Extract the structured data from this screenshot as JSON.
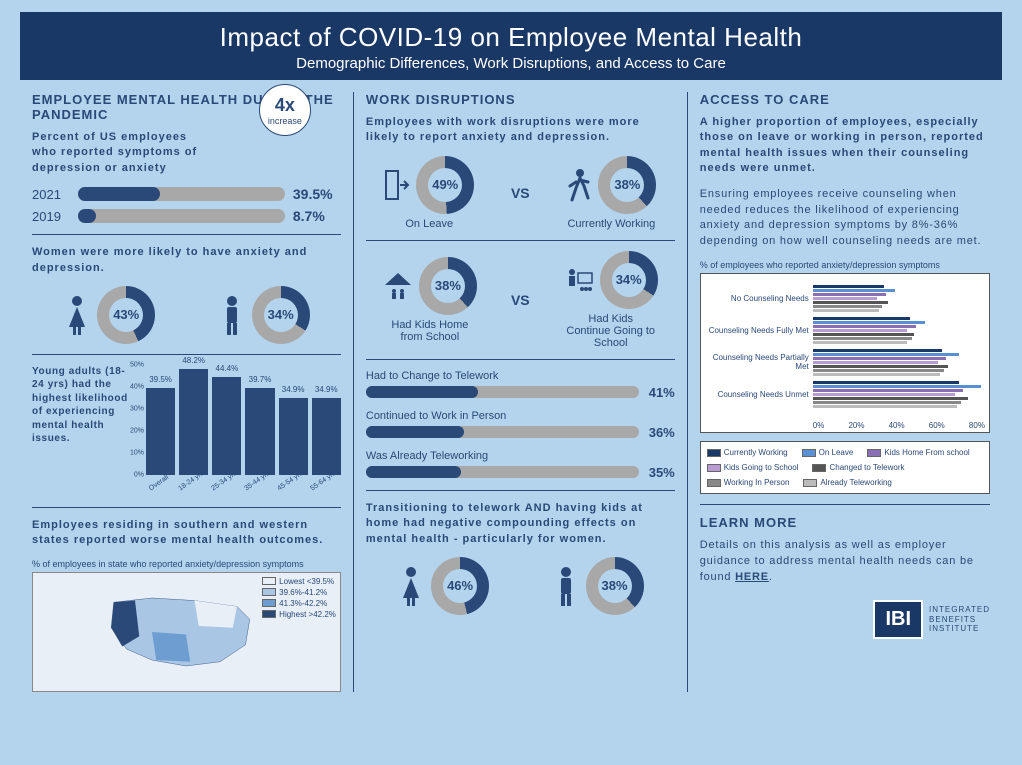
{
  "header": {
    "title": "Impact of COVID-19 on Employee Mental Health",
    "subtitle": "Demographic Differences, Work Disruptions, and Access to Care"
  },
  "colors": {
    "primary": "#2a4878",
    "accent_light": "#6d9dd1",
    "grey": "#a8a8a8",
    "bg": "#b3d4ec",
    "header_bg": "#1a3866"
  },
  "col1": {
    "title": "EMPLOYEE MENTAL HEALTH DURING THE PANDEMIC",
    "intro": "Percent of US employees who reported symptoms of depression or anxiety",
    "bubble_big": "4x",
    "bubble_small": "increase",
    "year_bars": [
      {
        "label": "2021",
        "value": 39.5,
        "display": "39.5%"
      },
      {
        "label": "2019",
        "value": 8.7,
        "display": "8.7%"
      }
    ],
    "women_text": "Women were more likely to have anxiety and depression.",
    "gender": [
      {
        "icon": "woman",
        "value": 43,
        "display": "43%"
      },
      {
        "icon": "man",
        "value": 34,
        "display": "34%"
      }
    ],
    "age_text": "Young adults (18-24 yrs) had the highest likelihood of experiencing mental health issues.",
    "age_chart": {
      "ylim": [
        0,
        50
      ],
      "y_step": 10,
      "categories": [
        "Overall",
        "18-24 yrs",
        "25-34 yrs",
        "35-44 yrs",
        "45-54 yrs",
        "55-64 yrs"
      ],
      "values": [
        39.5,
        48.2,
        44.4,
        39.7,
        34.9,
        34.9
      ]
    },
    "states_text": "Employees residing in southern and western states reported worse mental health outcomes.",
    "map_caption": "% of employees in state who reported anxiety/depression symptoms",
    "map_legend": [
      {
        "label": "Lowest <39.5%",
        "color": "#e8eff7"
      },
      {
        "label": "39.6%-41.2%",
        "color": "#a9c6e4"
      },
      {
        "label": "41.3%-42.2%",
        "color": "#6d9dd1"
      },
      {
        "label": "Highest >42.2%",
        "color": "#2a4878"
      }
    ]
  },
  "col2": {
    "title": "WORK DISRUPTIONS",
    "intro": "Employees with work disruptions were more likely to report anxiety and depression.",
    "pair1": {
      "left": {
        "caption": "On Leave",
        "value": 49,
        "display": "49%"
      },
      "right": {
        "caption": "Currently Working",
        "value": 38,
        "display": "38%"
      }
    },
    "pair2": {
      "left": {
        "caption": "Had Kids Home from School",
        "value": 38,
        "display": "38%"
      },
      "right": {
        "caption": "Had Kids Continue Going to School",
        "value": 34,
        "display": "34%"
      }
    },
    "work_bars": [
      {
        "label": "Had to Change to Telework",
        "value": 41,
        "display": "41%"
      },
      {
        "label": "Continued to Work in Person",
        "value": 36,
        "display": "36%"
      },
      {
        "label": "Was Already Teleworking",
        "value": 35,
        "display": "35%"
      }
    ],
    "compound_text": "Transitioning to telework AND having kids at home had negative compounding effects on mental health - particularly for women.",
    "compound": [
      {
        "icon": "woman",
        "value": 46,
        "display": "46%"
      },
      {
        "icon": "man",
        "value": 38,
        "display": "38%"
      }
    ]
  },
  "col3": {
    "title": "ACCESS TO CARE",
    "intro": "A higher proportion of employees, especially those on leave or working in person, reported mental health issues when their counseling needs were unmet.",
    "body": "Ensuring employees receive counseling when needed reduces the likelihood of experiencing anxiety and depression symptoms by 8%-36% depending on how well counseling needs are met.",
    "chart_caption": "% of employees who reported anxiety/depression symptoms",
    "grouped": {
      "categories": [
        "No Counseling Needs",
        "Counseling Needs Fully Met",
        "Counseling Needs Partially Met",
        "Counseling Needs Unmet"
      ],
      "series": [
        {
          "name": "Currently Working",
          "color": "#1a3866",
          "values": [
            33,
            45,
            60,
            68
          ]
        },
        {
          "name": "On Leave",
          "color": "#5b8fd4",
          "values": [
            38,
            52,
            68,
            78
          ]
        },
        {
          "name": "Kids Home From school",
          "color": "#8a6fb5",
          "values": [
            34,
            48,
            62,
            70
          ]
        },
        {
          "name": "Kids Going to School",
          "color": "#b89ad4",
          "values": [
            30,
            44,
            58,
            66
          ]
        },
        {
          "name": "Changed to Telework",
          "color": "#555555",
          "values": [
            35,
            47,
            63,
            72
          ]
        },
        {
          "name": "Working In Person",
          "color": "#888888",
          "values": [
            32,
            46,
            61,
            69
          ]
        },
        {
          "name": "Already Teleworking",
          "color": "#bbbbbb",
          "values": [
            31,
            44,
            59,
            67
          ]
        }
      ],
      "xticks": [
        "0%",
        "20%",
        "40%",
        "60%",
        "80%"
      ],
      "xmax": 80
    },
    "learn_title": "LEARN MORE",
    "learn_text": "Details on this analysis as well as employer guidance to address mental health needs can be found ",
    "learn_link": "HERE",
    "logo_abbr": "IBI",
    "logo_text1": "INTEGRATED",
    "logo_text2": "BENEFITS",
    "logo_text3": "INSTITUTE"
  }
}
